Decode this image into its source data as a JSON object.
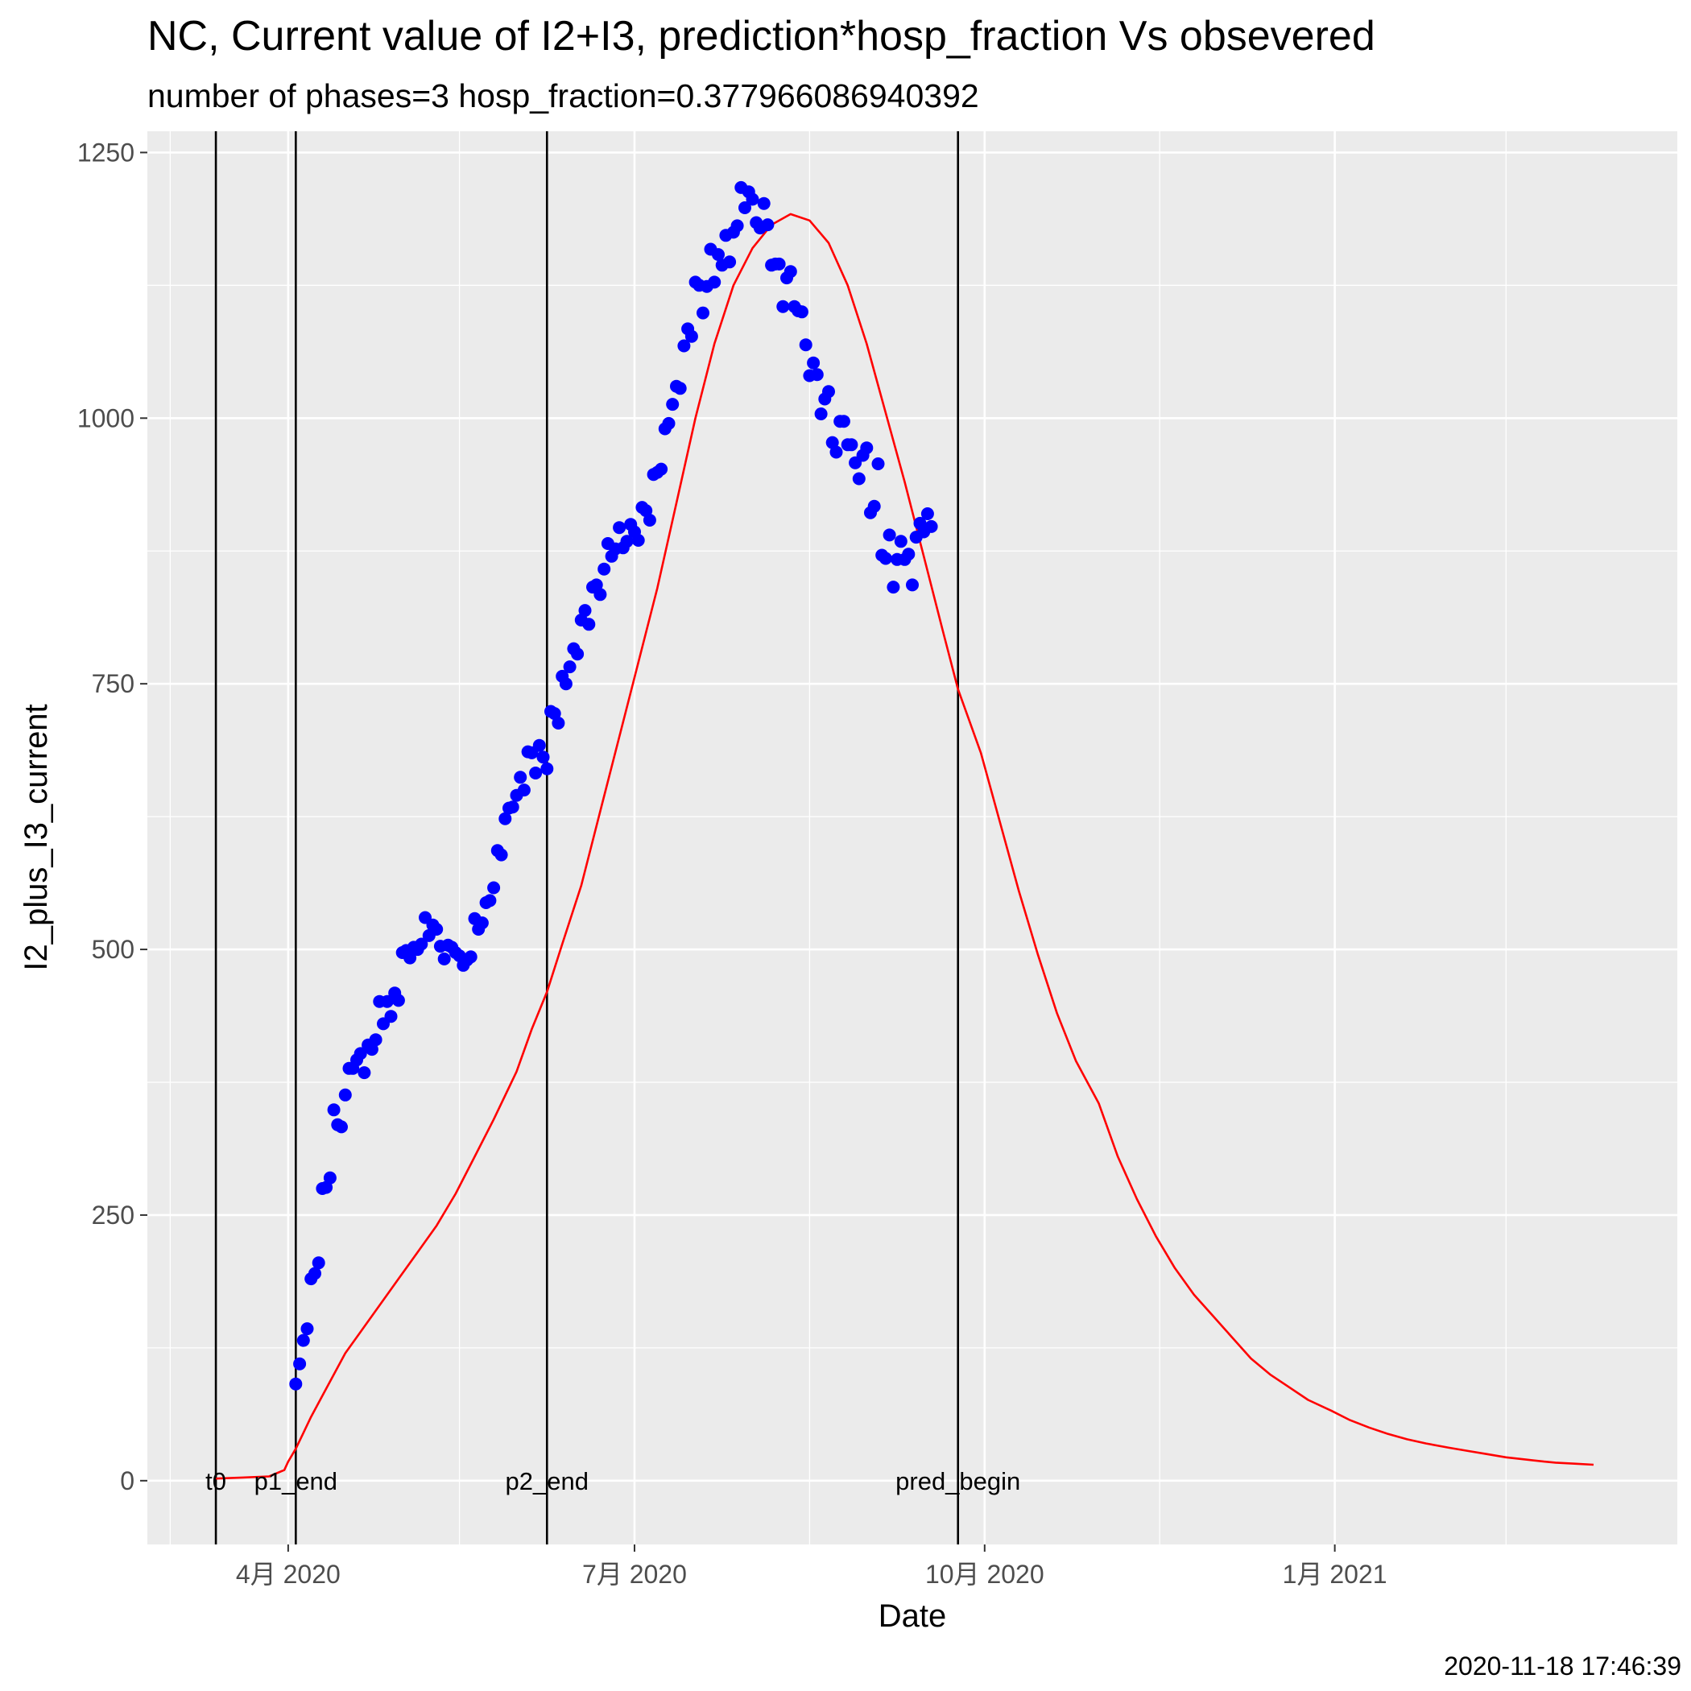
{
  "chart_data": {
    "type": "line",
    "title": "NC, Current value of I2+I3, prediction*hosp_fraction Vs obsevered",
    "subtitle": "number of phases=3   hosp_fraction=0.377966086940392",
    "xlabel": "Date",
    "ylabel": "I2_plus_I3_current",
    "caption": "2020-11-18 17:46:39",
    "xlim": [
      "2020-02-24",
      "2021-04-01"
    ],
    "ylim": [
      -60,
      1270
    ],
    "y_ticks": [
      0,
      250,
      500,
      750,
      1000,
      1250
    ],
    "y_tick_labels": [
      "0",
      "250",
      "500",
      "750",
      "1000",
      "1250"
    ],
    "y_minor_ticks": [
      125,
      375,
      625,
      875,
      1125
    ],
    "x_ticks": [
      "2020-04-01",
      "2020-07-01",
      "2020-10-01",
      "2021-01-01"
    ],
    "x_tick_labels": [
      "4月 2020",
      "7月 2020",
      "10月 2020",
      "1月 2021"
    ],
    "x_minor_ticks": [
      "2020-03-01",
      "2020-05-16",
      "2020-08-16",
      "2020-11-16",
      "2021-02-15"
    ],
    "grid": true,
    "colors": {
      "panel": "#ebebeb",
      "grid": "#ffffff",
      "observed": "#0000ff",
      "prediction": "#ff0000",
      "vline": "#000000"
    },
    "vlines": [
      {
        "date": "2020-03-13",
        "label": "t0"
      },
      {
        "date": "2020-04-03",
        "label": "p1_end"
      },
      {
        "date": "2020-06-08",
        "label": "p2_end"
      },
      {
        "date": "2020-09-24",
        "label": "pred_begin"
      }
    ],
    "series": [
      {
        "type": "scatter",
        "color": "#0000ff",
        "points": [
          [
            "2020-04-03",
            91
          ],
          [
            "2020-04-04",
            110
          ],
          [
            "2020-04-05",
            132
          ],
          [
            "2020-04-06",
            143
          ],
          [
            "2020-04-07",
            190
          ],
          [
            "2020-04-08",
            195
          ],
          [
            "2020-04-09",
            205
          ],
          [
            "2020-04-10",
            275
          ],
          [
            "2020-04-11",
            276
          ],
          [
            "2020-04-12",
            285
          ],
          [
            "2020-04-13",
            349
          ],
          [
            "2020-04-14",
            335
          ],
          [
            "2020-04-15",
            333
          ],
          [
            "2020-04-16",
            363
          ],
          [
            "2020-04-17",
            388
          ],
          [
            "2020-04-18",
            388
          ],
          [
            "2020-04-19",
            396
          ],
          [
            "2020-04-20",
            402
          ],
          [
            "2020-04-21",
            384
          ],
          [
            "2020-04-22",
            410
          ],
          [
            "2020-04-23",
            406
          ],
          [
            "2020-04-24",
            415
          ],
          [
            "2020-04-25",
            451
          ],
          [
            "2020-04-26",
            430
          ],
          [
            "2020-04-27",
            451
          ],
          [
            "2020-04-28",
            437
          ],
          [
            "2020-04-29",
            459
          ],
          [
            "2020-04-30",
            452
          ],
          [
            "2020-05-01",
            497
          ],
          [
            "2020-05-02",
            499
          ],
          [
            "2020-05-03",
            492
          ],
          [
            "2020-05-04",
            502
          ],
          [
            "2020-05-05",
            500
          ],
          [
            "2020-05-06",
            505
          ],
          [
            "2020-05-07",
            530
          ],
          [
            "2020-05-08",
            513
          ],
          [
            "2020-05-09",
            523
          ],
          [
            "2020-05-10",
            519
          ],
          [
            "2020-05-11",
            503
          ],
          [
            "2020-05-12",
            491
          ],
          [
            "2020-05-13",
            504
          ],
          [
            "2020-05-14",
            502
          ],
          [
            "2020-05-15",
            497
          ],
          [
            "2020-05-16",
            494
          ],
          [
            "2020-05-17",
            485
          ],
          [
            "2020-05-18",
            490
          ],
          [
            "2020-05-19",
            493
          ],
          [
            "2020-05-20",
            529
          ],
          [
            "2020-05-21",
            519
          ],
          [
            "2020-05-22",
            525
          ],
          [
            "2020-05-23",
            544
          ],
          [
            "2020-05-24",
            546
          ],
          [
            "2020-05-25",
            558
          ],
          [
            "2020-05-26",
            593
          ],
          [
            "2020-05-27",
            589
          ],
          [
            "2020-05-28",
            623
          ],
          [
            "2020-05-29",
            633
          ],
          [
            "2020-05-30",
            634
          ],
          [
            "2020-05-31",
            645
          ],
          [
            "2020-06-01",
            662
          ],
          [
            "2020-06-02",
            650
          ],
          [
            "2020-06-03",
            686
          ],
          [
            "2020-06-04",
            685
          ],
          [
            "2020-06-05",
            666
          ],
          [
            "2020-06-06",
            692
          ],
          [
            "2020-06-07",
            681
          ],
          [
            "2020-06-08",
            670
          ],
          [
            "2020-06-09",
            724
          ],
          [
            "2020-06-10",
            722
          ],
          [
            "2020-06-11",
            713
          ],
          [
            "2020-06-12",
            757
          ],
          [
            "2020-06-13",
            750
          ],
          [
            "2020-06-14",
            766
          ],
          [
            "2020-06-15",
            783
          ],
          [
            "2020-06-16",
            778
          ],
          [
            "2020-06-17",
            810
          ],
          [
            "2020-06-18",
            819
          ],
          [
            "2020-06-19",
            806
          ],
          [
            "2020-06-20",
            841
          ],
          [
            "2020-06-21",
            843
          ],
          [
            "2020-06-22",
            834
          ],
          [
            "2020-06-23",
            858
          ],
          [
            "2020-06-24",
            882
          ],
          [
            "2020-06-25",
            870
          ],
          [
            "2020-06-26",
            877
          ],
          [
            "2020-06-27",
            897
          ],
          [
            "2020-06-28",
            878
          ],
          [
            "2020-06-29",
            884
          ],
          [
            "2020-06-30",
            900
          ],
          [
            "2020-07-01",
            893
          ],
          [
            "2020-07-02",
            885
          ],
          [
            "2020-07-03",
            916
          ],
          [
            "2020-07-04",
            913
          ],
          [
            "2020-07-05",
            904
          ],
          [
            "2020-07-06",
            947
          ],
          [
            "2020-07-07",
            949
          ],
          [
            "2020-07-08",
            952
          ],
          [
            "2020-07-09",
            990
          ],
          [
            "2020-07-10",
            995
          ],
          [
            "2020-07-11",
            1013
          ],
          [
            "2020-07-12",
            1030
          ],
          [
            "2020-07-13",
            1028
          ],
          [
            "2020-07-14",
            1068
          ],
          [
            "2020-07-15",
            1084
          ],
          [
            "2020-07-16",
            1077
          ],
          [
            "2020-07-17",
            1128
          ],
          [
            "2020-07-18",
            1125
          ],
          [
            "2020-07-19",
            1099
          ],
          [
            "2020-07-20",
            1124
          ],
          [
            "2020-07-21",
            1159
          ],
          [
            "2020-07-22",
            1128
          ],
          [
            "2020-07-23",
            1154
          ],
          [
            "2020-07-24",
            1144
          ],
          [
            "2020-07-25",
            1172
          ],
          [
            "2020-07-26",
            1147
          ],
          [
            "2020-07-27",
            1175
          ],
          [
            "2020-07-28",
            1181
          ],
          [
            "2020-07-29",
            1217
          ],
          [
            "2020-07-30",
            1198
          ],
          [
            "2020-07-31",
            1213
          ],
          [
            "2020-08-01",
            1206
          ],
          [
            "2020-08-02",
            1184
          ],
          [
            "2020-08-03",
            1179
          ],
          [
            "2020-08-04",
            1202
          ],
          [
            "2020-08-05",
            1182
          ],
          [
            "2020-08-06",
            1144
          ],
          [
            "2020-08-07",
            1145
          ],
          [
            "2020-08-08",
            1145
          ],
          [
            "2020-08-09",
            1105
          ],
          [
            "2020-08-10",
            1132
          ],
          [
            "2020-08-11",
            1138
          ],
          [
            "2020-08-12",
            1105
          ],
          [
            "2020-08-13",
            1101
          ],
          [
            "2020-08-14",
            1100
          ],
          [
            "2020-08-15",
            1069
          ],
          [
            "2020-08-16",
            1040
          ],
          [
            "2020-08-17",
            1052
          ],
          [
            "2020-08-18",
            1041
          ],
          [
            "2020-08-19",
            1004
          ],
          [
            "2020-08-20",
            1018
          ],
          [
            "2020-08-21",
            1025
          ],
          [
            "2020-08-22",
            977
          ],
          [
            "2020-08-23",
            968
          ],
          [
            "2020-08-24",
            997
          ],
          [
            "2020-08-25",
            997
          ],
          [
            "2020-08-26",
            975
          ],
          [
            "2020-08-27",
            975
          ],
          [
            "2020-08-28",
            958
          ],
          [
            "2020-08-29",
            943
          ],
          [
            "2020-08-30",
            965
          ],
          [
            "2020-08-31",
            972
          ],
          [
            "2020-09-01",
            911
          ],
          [
            "2020-09-02",
            917
          ],
          [
            "2020-09-03",
            957
          ],
          [
            "2020-09-04",
            871
          ],
          [
            "2020-09-05",
            868
          ],
          [
            "2020-09-06",
            890
          ],
          [
            "2020-09-07",
            841
          ],
          [
            "2020-09-08",
            867
          ],
          [
            "2020-09-09",
            884
          ],
          [
            "2020-09-10",
            867
          ],
          [
            "2020-09-11",
            872
          ],
          [
            "2020-09-12",
            843
          ],
          [
            "2020-09-13",
            888
          ],
          [
            "2020-09-14",
            901
          ],
          [
            "2020-09-15",
            893
          ],
          [
            "2020-09-16",
            910
          ],
          [
            "2020-09-17",
            898
          ]
        ]
      },
      {
        "type": "line",
        "color": "#ff0000",
        "points": [
          [
            "2020-03-13",
            2
          ],
          [
            "2020-03-20",
            3
          ],
          [
            "2020-03-27",
            4
          ],
          [
            "2020-03-31",
            10
          ],
          [
            "2020-04-01",
            18
          ],
          [
            "2020-04-03",
            30
          ],
          [
            "2020-04-05",
            45
          ],
          [
            "2020-04-07",
            60
          ],
          [
            "2020-04-10",
            80
          ],
          [
            "2020-04-13",
            100
          ],
          [
            "2020-04-16",
            120
          ],
          [
            "2020-04-20",
            140
          ],
          [
            "2020-04-25",
            165
          ],
          [
            "2020-04-30",
            190
          ],
          [
            "2020-05-05",
            215
          ],
          [
            "2020-05-10",
            240
          ],
          [
            "2020-05-15",
            270
          ],
          [
            "2020-05-20",
            305
          ],
          [
            "2020-05-25",
            340
          ],
          [
            "2020-05-31",
            385
          ],
          [
            "2020-06-04",
            425
          ],
          [
            "2020-06-08",
            460
          ],
          [
            "2020-06-12",
            505
          ],
          [
            "2020-06-17",
            560
          ],
          [
            "2020-06-22",
            630
          ],
          [
            "2020-06-27",
            700
          ],
          [
            "2020-07-02",
            770
          ],
          [
            "2020-07-07",
            840
          ],
          [
            "2020-07-12",
            920
          ],
          [
            "2020-07-17",
            1000
          ],
          [
            "2020-07-22",
            1070
          ],
          [
            "2020-07-27",
            1125
          ],
          [
            "2020-08-01",
            1160
          ],
          [
            "2020-08-06",
            1182
          ],
          [
            "2020-08-11",
            1192
          ],
          [
            "2020-08-16",
            1186
          ],
          [
            "2020-08-21",
            1165
          ],
          [
            "2020-08-26",
            1125
          ],
          [
            "2020-08-31",
            1070
          ],
          [
            "2020-09-05",
            1005
          ],
          [
            "2020-09-10",
            940
          ],
          [
            "2020-09-15",
            870
          ],
          [
            "2020-09-20",
            800
          ],
          [
            "2020-09-24",
            745
          ],
          [
            "2020-09-30",
            685
          ],
          [
            "2020-10-05",
            620
          ],
          [
            "2020-10-10",
            555
          ],
          [
            "2020-10-15",
            495
          ],
          [
            "2020-10-20",
            440
          ],
          [
            "2020-10-25",
            395
          ],
          [
            "2020-10-31",
            355
          ],
          [
            "2020-11-05",
            305
          ],
          [
            "2020-11-10",
            265
          ],
          [
            "2020-11-15",
            230
          ],
          [
            "2020-11-20",
            200
          ],
          [
            "2020-11-25",
            175
          ],
          [
            "2020-11-30",
            155
          ],
          [
            "2020-12-05",
            135
          ],
          [
            "2020-12-10",
            115
          ],
          [
            "2020-12-15",
            100
          ],
          [
            "2020-12-20",
            88
          ],
          [
            "2020-12-25",
            76
          ],
          [
            "2020-12-31",
            66
          ],
          [
            "2021-01-05",
            57
          ],
          [
            "2021-01-10",
            50
          ],
          [
            "2021-01-15",
            44
          ],
          [
            "2021-01-20",
            39
          ],
          [
            "2021-01-25",
            35
          ],
          [
            "2021-01-31",
            31
          ],
          [
            "2021-02-05",
            28
          ],
          [
            "2021-02-10",
            25
          ],
          [
            "2021-02-15",
            22
          ],
          [
            "2021-02-20",
            20
          ],
          [
            "2021-02-25",
            18
          ],
          [
            "2021-02-28",
            17
          ],
          [
            "2021-03-05",
            16
          ],
          [
            "2021-03-10",
            15
          ]
        ]
      }
    ]
  }
}
